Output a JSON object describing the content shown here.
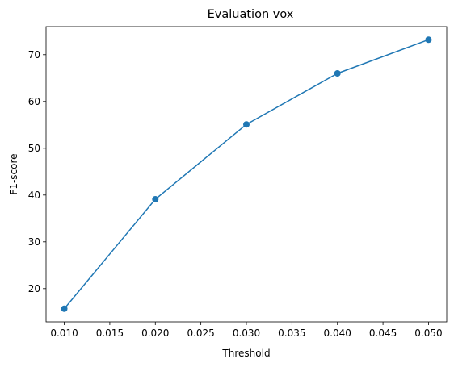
{
  "chart_data": {
    "type": "line",
    "title": "Evaluation vox",
    "xlabel": "Threshold",
    "ylabel": "F1-score",
    "x": [
      0.01,
      0.02,
      0.03,
      0.04,
      0.05
    ],
    "series": [
      {
        "values": [
          15.7,
          39.1,
          55.1,
          66.0,
          73.2
        ],
        "color": "#1f77b4",
        "marker": "circle"
      }
    ],
    "xticks": [
      "0.010",
      "0.015",
      "0.020",
      "0.025",
      "0.030",
      "0.035",
      "0.040",
      "0.045",
      "0.050"
    ],
    "yticks": [
      "20",
      "30",
      "40",
      "50",
      "60",
      "70"
    ],
    "xlim": [
      0.008,
      0.052
    ],
    "ylim": [
      12.9,
      76.0
    ],
    "grid": false,
    "legend": false
  }
}
